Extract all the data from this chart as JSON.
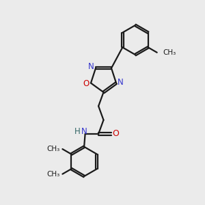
{
  "background_color": "#ebebeb",
  "bond_color": "#1a1a1a",
  "nitrogen_color": "#3333cc",
  "oxygen_color": "#cc0000",
  "nh_color": "#336666",
  "line_width": 1.6,
  "dbo": 0.055,
  "xlim": [
    0,
    10
  ],
  "ylim": [
    0,
    10
  ]
}
